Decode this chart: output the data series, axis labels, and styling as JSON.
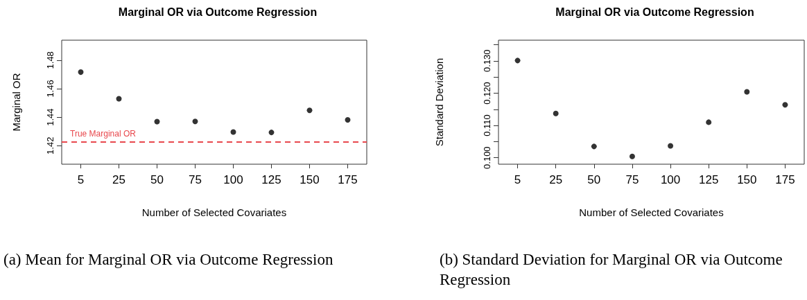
{
  "chart_data": [
    {
      "type": "scatter",
      "title": "Marginal OR via Outcome Regression",
      "xlabel": "Number of Selected Covariates",
      "ylabel": "Marginal OR",
      "categories": [
        "5",
        "25",
        "50",
        "75",
        "100",
        "125",
        "150",
        "175"
      ],
      "series": [
        {
          "color": "#000000",
          "values": [
            1.4716,
            1.4529,
            1.4369,
            1.437,
            1.4296,
            1.4293,
            1.4448,
            1.4381
          ]
        }
      ],
      "ylim": [
        1.407,
        1.494
      ],
      "yticks": [
        1.42,
        1.44,
        1.46,
        1.48
      ],
      "marker": "circle",
      "grid": false,
      "ref_lines": [
        {
          "axis": "y",
          "value": 1.4225,
          "label": "True Marginal OR",
          "color": "#e8474c",
          "line_style": "dashed"
        }
      ],
      "annotations": [
        "(a) Mean for Marginal OR via Outcome Regression"
      ]
    },
    {
      "type": "scatter",
      "title": "Marginal OR via Outcome Regression",
      "xlabel": "Number of Selected Covariates",
      "ylabel": "Standard Deviation",
      "categories": [
        "5",
        "25",
        "50",
        "75",
        "100",
        "125",
        "150",
        "175"
      ],
      "series": [
        {
          "color": "#000000",
          "values": [
            0.1301,
            0.1137,
            0.1035,
            0.1004,
            0.1037,
            0.111,
            0.1204,
            0.1164
          ]
        }
      ],
      "ylim": [
        0.098,
        0.1364
      ],
      "yticks": [
        {
          "value": 0.1,
          "label": "0.100"
        },
        {
          "value": 0.105,
          "label": null
        },
        {
          "value": 0.11,
          "label": "0.110"
        },
        {
          "value": 0.115,
          "label": null
        },
        {
          "value": 0.12,
          "label": "0.120"
        },
        {
          "value": 0.125,
          "label": null
        },
        {
          "value": 0.13,
          "label": "0.130"
        },
        {
          "value": 0.135,
          "label": null
        }
      ],
      "marker": "circle",
      "grid": false,
      "annotations": [
        "(b) Standard Deviation for Marginal OR via Outcome Regression"
      ]
    }
  ]
}
